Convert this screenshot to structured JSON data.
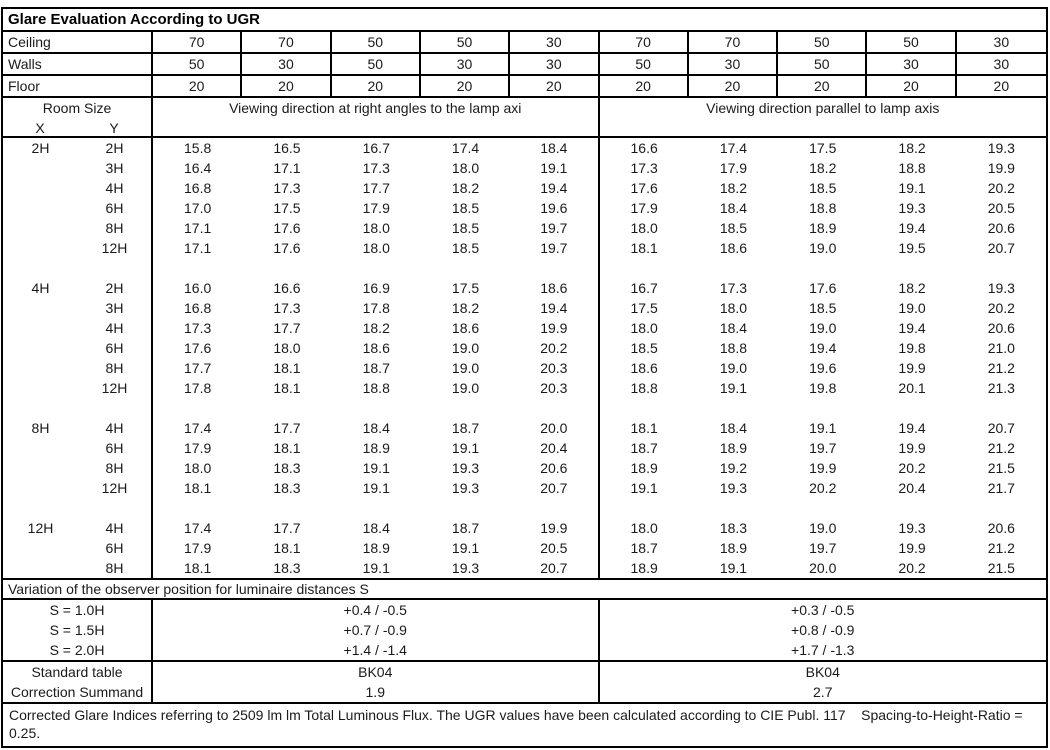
{
  "title": "Glare Evaluation According to UGR",
  "surface_rows": [
    {
      "label": "Ceiling",
      "values": [
        "70",
        "70",
        "50",
        "50",
        "30",
        "70",
        "70",
        "50",
        "50",
        "30"
      ]
    },
    {
      "label": "Walls",
      "values": [
        "50",
        "30",
        "50",
        "30",
        "30",
        "50",
        "30",
        "50",
        "30",
        "30"
      ]
    },
    {
      "label": "Floor",
      "values": [
        "20",
        "20",
        "20",
        "20",
        "20",
        "20",
        "20",
        "20",
        "20",
        "20"
      ]
    }
  ],
  "header": {
    "room_size_label": "Room Size",
    "x_label": "X",
    "y_label": "Y",
    "left_group_label": "Viewing direction at right angles to the lamp axi",
    "right_group_label": "Viewing direction parallel to lamp axis"
  },
  "ugr_blocks": [
    {
      "x": "2H",
      "rows": [
        {
          "y": "2H",
          "right_angle": [
            "15.8",
            "16.5",
            "16.7",
            "17.4",
            "18.4"
          ],
          "parallel": [
            "16.6",
            "17.4",
            "17.5",
            "18.2",
            "19.3"
          ]
        },
        {
          "y": "3H",
          "right_angle": [
            "16.4",
            "17.1",
            "17.3",
            "18.0",
            "19.1"
          ],
          "parallel": [
            "17.3",
            "17.9",
            "18.2",
            "18.8",
            "19.9"
          ]
        },
        {
          "y": "4H",
          "right_angle": [
            "16.8",
            "17.3",
            "17.7",
            "18.2",
            "19.4"
          ],
          "parallel": [
            "17.6",
            "18.2",
            "18.5",
            "19.1",
            "20.2"
          ]
        },
        {
          "y": "6H",
          "right_angle": [
            "17.0",
            "17.5",
            "17.9",
            "18.5",
            "19.6"
          ],
          "parallel": [
            "17.9",
            "18.4",
            "18.8",
            "19.3",
            "20.5"
          ]
        },
        {
          "y": "8H",
          "right_angle": [
            "17.1",
            "17.6",
            "18.0",
            "18.5",
            "19.7"
          ],
          "parallel": [
            "18.0",
            "18.5",
            "18.9",
            "19.4",
            "20.6"
          ]
        },
        {
          "y": "12H",
          "right_angle": [
            "17.1",
            "17.6",
            "18.0",
            "18.5",
            "19.7"
          ],
          "parallel": [
            "18.1",
            "18.6",
            "19.0",
            "19.5",
            "20.7"
          ]
        }
      ]
    },
    {
      "x": "4H",
      "rows": [
        {
          "y": "2H",
          "right_angle": [
            "16.0",
            "16.6",
            "16.9",
            "17.5",
            "18.6"
          ],
          "parallel": [
            "16.7",
            "17.3",
            "17.6",
            "18.2",
            "19.3"
          ]
        },
        {
          "y": "3H",
          "right_angle": [
            "16.8",
            "17.3",
            "17.8",
            "18.2",
            "19.4"
          ],
          "parallel": [
            "17.5",
            "18.0",
            "18.5",
            "19.0",
            "20.2"
          ]
        },
        {
          "y": "4H",
          "right_angle": [
            "17.3",
            "17.7",
            "18.2",
            "18.6",
            "19.9"
          ],
          "parallel": [
            "18.0",
            "18.4",
            "19.0",
            "19.4",
            "20.6"
          ]
        },
        {
          "y": "6H",
          "right_angle": [
            "17.6",
            "18.0",
            "18.6",
            "19.0",
            "20.2"
          ],
          "parallel": [
            "18.5",
            "18.8",
            "19.4",
            "19.8",
            "21.0"
          ]
        },
        {
          "y": "8H",
          "right_angle": [
            "17.7",
            "18.1",
            "18.7",
            "19.0",
            "20.3"
          ],
          "parallel": [
            "18.6",
            "19.0",
            "19.6",
            "19.9",
            "21.2"
          ]
        },
        {
          "y": "12H",
          "right_angle": [
            "17.8",
            "18.1",
            "18.8",
            "19.0",
            "20.3"
          ],
          "parallel": [
            "18.8",
            "19.1",
            "19.8",
            "20.1",
            "21.3"
          ]
        }
      ]
    },
    {
      "x": "8H",
      "rows": [
        {
          "y": "4H",
          "right_angle": [
            "17.4",
            "17.7",
            "18.4",
            "18.7",
            "20.0"
          ],
          "parallel": [
            "18.1",
            "18.4",
            "19.1",
            "19.4",
            "20.7"
          ]
        },
        {
          "y": "6H",
          "right_angle": [
            "17.9",
            "18.1",
            "18.9",
            "19.1",
            "20.4"
          ],
          "parallel": [
            "18.7",
            "18.9",
            "19.7",
            "19.9",
            "21.2"
          ]
        },
        {
          "y": "8H",
          "right_angle": [
            "18.0",
            "18.3",
            "19.1",
            "19.3",
            "20.6"
          ],
          "parallel": [
            "18.9",
            "19.2",
            "19.9",
            "20.2",
            "21.5"
          ]
        },
        {
          "y": "12H",
          "right_angle": [
            "18.1",
            "18.3",
            "19.1",
            "19.3",
            "20.7"
          ],
          "parallel": [
            "19.1",
            "19.3",
            "20.2",
            "20.4",
            "21.7"
          ]
        }
      ]
    },
    {
      "x": "12H",
      "rows": [
        {
          "y": "4H",
          "right_angle": [
            "17.4",
            "17.7",
            "18.4",
            "18.7",
            "19.9"
          ],
          "parallel": [
            "18.0",
            "18.3",
            "19.0",
            "19.3",
            "20.6"
          ]
        },
        {
          "y": "6H",
          "right_angle": [
            "17.9",
            "18.1",
            "18.9",
            "19.1",
            "20.5"
          ],
          "parallel": [
            "18.7",
            "18.9",
            "19.7",
            "19.9",
            "21.2"
          ]
        },
        {
          "y": "8H",
          "right_angle": [
            "18.1",
            "18.3",
            "19.1",
            "19.3",
            "20.7"
          ],
          "parallel": [
            "18.9",
            "19.1",
            "20.0",
            "20.2",
            "21.5"
          ]
        }
      ]
    }
  ],
  "variation": {
    "title": "Variation of the observer position for luminaire distances S",
    "rows": [
      {
        "label": "S = 1.0H",
        "left": "+0.4 / -0.5",
        "right": "+0.3 / -0.5"
      },
      {
        "label": "S = 1.5H",
        "left": "+0.7 / -0.9",
        "right": "+0.8 / -0.9"
      },
      {
        "label": "S = 2.0H",
        "left": "+1.4 / -1.4",
        "right": "+1.7 / -1.3"
      }
    ]
  },
  "summary_rows": [
    {
      "label": "Standard table",
      "left": "BK04",
      "right": "BK04"
    },
    {
      "label": "Correction Summand",
      "left": "1.9",
      "right": "2.7"
    }
  ],
  "footer": "Corrected Glare Indices referring to 2509 lm lm Total Luminous Flux. The UGR values have been calculated according to CIE Publ. 117    Spacing-to-Height-Ratio = 0.25.",
  "colors": {
    "border": "#000000",
    "text": "#1a1a1a",
    "background": "#ffffff"
  }
}
